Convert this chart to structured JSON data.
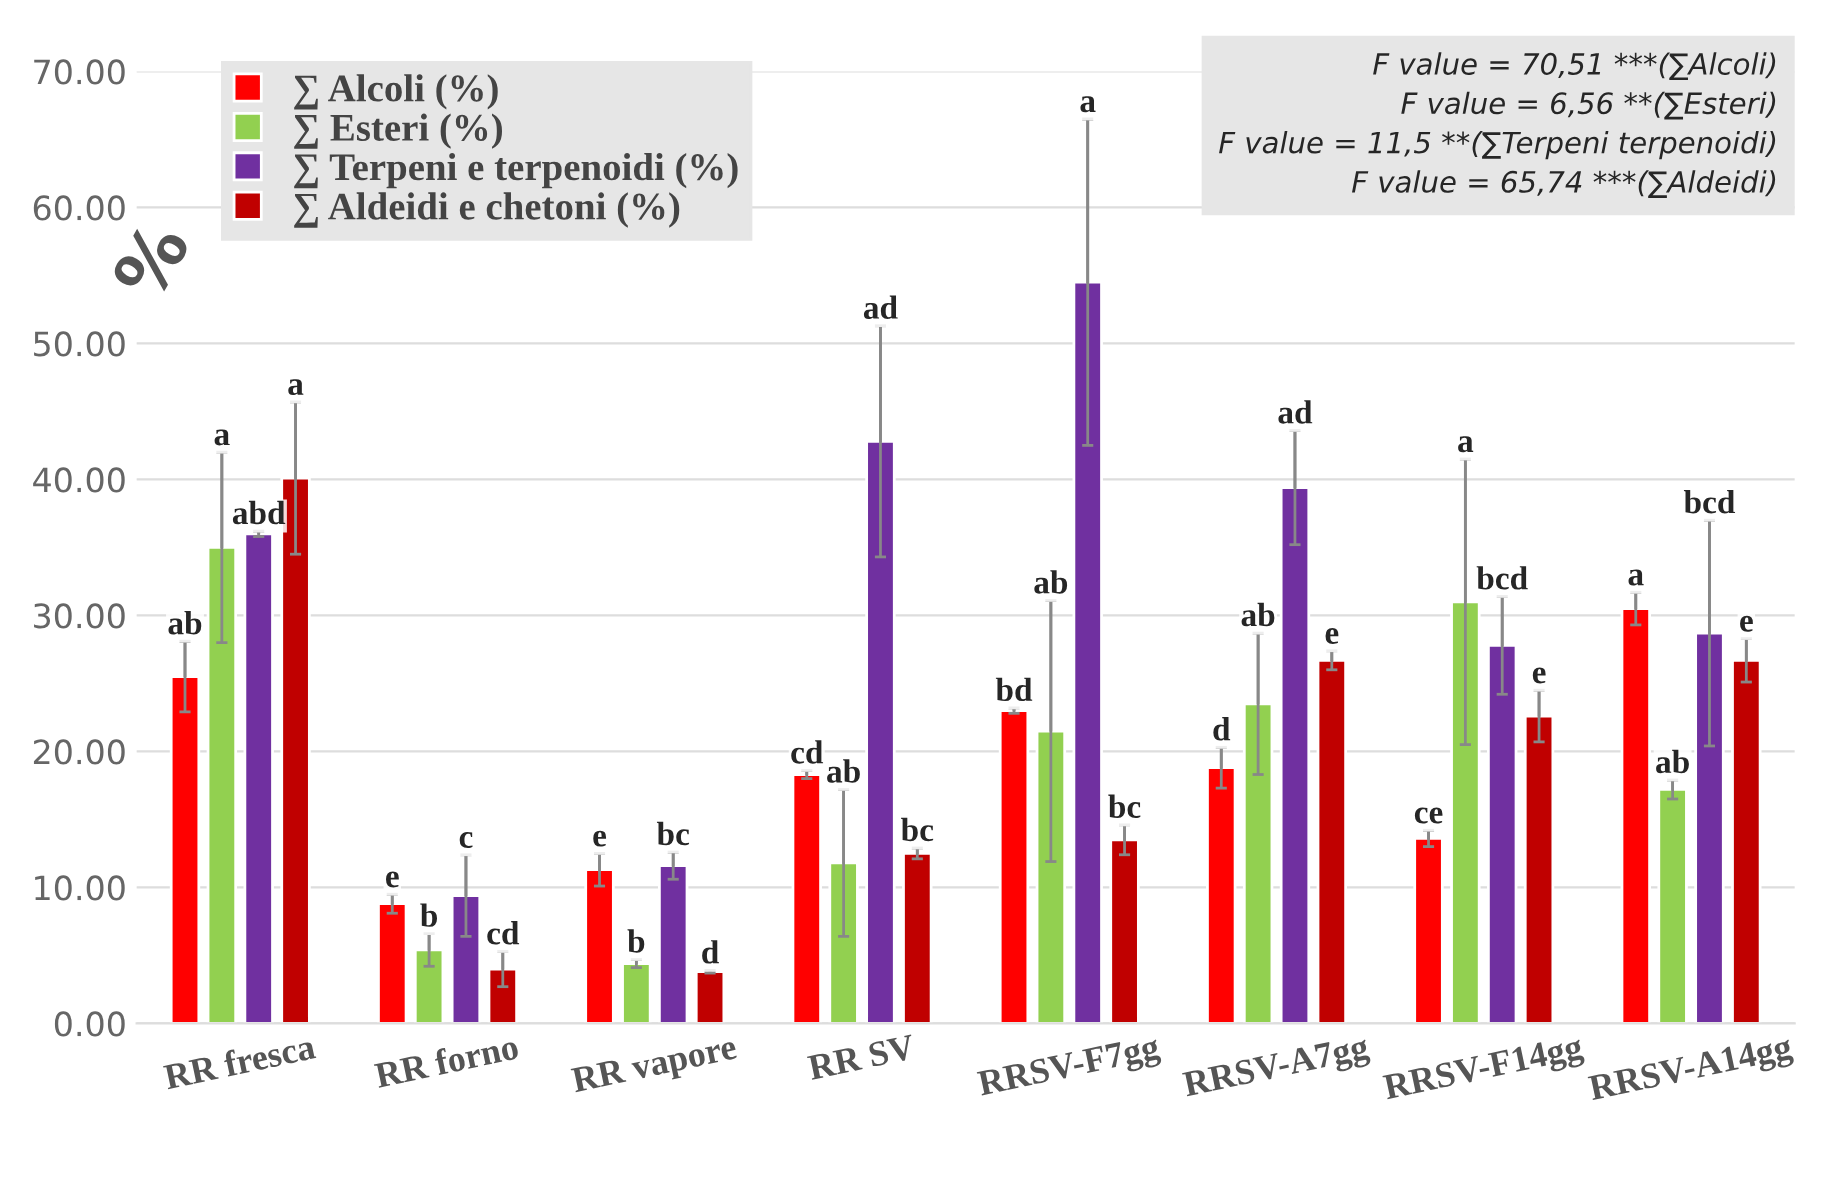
{
  "chart_data": {
    "type": "bar",
    "ylabel": "%",
    "categories": [
      "RR fresca",
      "RR forno",
      "RR vapore",
      "RR SV",
      "RRSV-F7gg",
      "RRSV-A7gg",
      "RRSV-F14gg",
      "RRSV-A14gg"
    ],
    "series": [
      {
        "name": "∑ Alcoli (%)",
        "color": "#ff0000",
        "values": [
          25.5,
          8.8,
          11.3,
          18.3,
          23.0,
          18.8,
          13.6,
          30.5
        ],
        "errors": [
          2.6,
          0.7,
          1.2,
          0.3,
          0.2,
          1.5,
          0.6,
          1.2
        ],
        "value_labels": [
          "ab",
          "e",
          "e",
          "cd",
          "bd",
          "d",
          "ce",
          "a"
        ]
      },
      {
        "name": "∑ Esteri (%)",
        "color": "#92d050",
        "values": [
          35.0,
          5.4,
          4.4,
          11.8,
          21.5,
          23.5,
          31.0,
          17.2
        ],
        "errors": [
          7.0,
          1.2,
          0.3,
          5.4,
          9.6,
          5.2,
          10.5,
          0.7
        ],
        "value_labels": [
          "a",
          "b",
          "b",
          "ab",
          "ab",
          "ab",
          "a",
          "ab"
        ]
      },
      {
        "name": "∑ Terpeni e terpenoidi (%)",
        "color": "#7030a0",
        "values": [
          36.0,
          9.4,
          11.6,
          42.8,
          54.5,
          39.4,
          27.8,
          28.7
        ],
        "errors": [
          0.2,
          3.0,
          1.0,
          8.5,
          12.0,
          4.2,
          3.6,
          8.3
        ],
        "value_labels": [
          "abd",
          "c",
          "bc",
          "ad",
          "a",
          "ad",
          "bcd",
          "bcd"
        ]
      },
      {
        "name": "∑ Aldeidi e chetoni (%)",
        "color": "#c00000",
        "values": [
          40.1,
          4.0,
          3.8,
          12.5,
          13.5,
          26.7,
          22.6,
          26.7
        ],
        "errors": [
          5.6,
          1.3,
          0.1,
          0.4,
          1.1,
          0.7,
          1.9,
          1.6
        ],
        "value_labels": [
          "a",
          "cd",
          "d",
          "bc",
          "bc",
          "e",
          "e",
          "e"
        ]
      }
    ],
    "ylim": [
      0,
      70
    ],
    "yticks": [
      {
        "value": 0,
        "label": "0.00"
      },
      {
        "value": 10,
        "label": "10.00"
      },
      {
        "value": 20,
        "label": "20.00"
      },
      {
        "value": 30,
        "label": "30.00"
      },
      {
        "value": 40,
        "label": "40.00"
      },
      {
        "value": 50,
        "label": "50.00"
      },
      {
        "value": 60,
        "label": "60.00"
      },
      {
        "value": 70,
        "label": "70.00"
      }
    ],
    "grid": "y",
    "legend": "top left",
    "annotations": [
      "F value = 70,51 ***(∑Alcoli)\nF value = 6,56 **(∑Esteri)\nF value = 11,5 **(∑Terpeni terpenoidi)\nF value = 65,74 ***(∑Aldeidi)"
    ]
  }
}
